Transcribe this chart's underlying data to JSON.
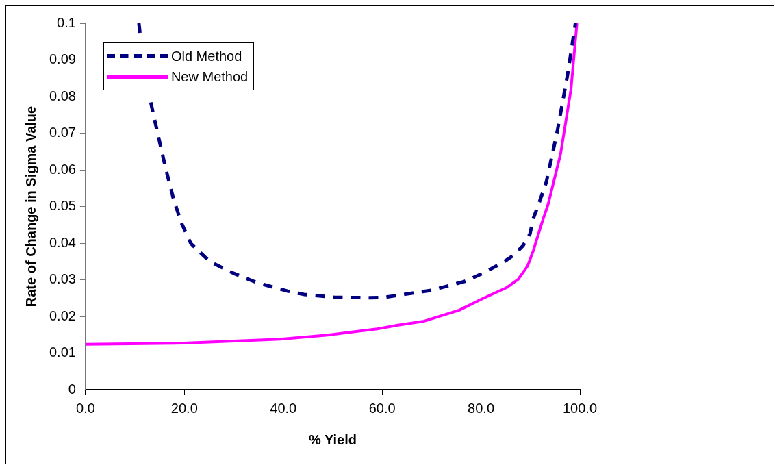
{
  "chart_data": {
    "type": "line",
    "xlabel": "% Yield",
    "ylabel": "Rate of Change in Sigma Value",
    "xlim": [
      0,
      100
    ],
    "xticks": [
      {
        "value": 0,
        "label": "0.0"
      },
      {
        "value": 20,
        "label": "20.0"
      },
      {
        "value": 40,
        "label": "40.0"
      },
      {
        "value": 60,
        "label": "60.0"
      },
      {
        "value": 80,
        "label": "80.0"
      },
      {
        "value": 100,
        "label": "100.0"
      }
    ],
    "ylim": [
      0,
      0.1
    ],
    "yticks": [
      0,
      0.01,
      0.02,
      0.03,
      0.04,
      0.05,
      0.06,
      0.07,
      0.08,
      0.09,
      0.1
    ],
    "grid": false,
    "legend": "top left",
    "marker": "none",
    "series": [
      {
        "name": "Old Method",
        "color": "#000080",
        "line_style": "dashed",
        "x": [
          10.8,
          11.1,
          12.2,
          13.2,
          14.6,
          16.2,
          17.8,
          19.4,
          21.3,
          25.1,
          29.9,
          34.7,
          40.9,
          44.2,
          50.4,
          57.5,
          60.4,
          69.9,
          76.6,
          80.4,
          84.4,
          86.6,
          88.5,
          89.9,
          90.6,
          91.6,
          93.2,
          95.4,
          97.5,
          99.1
        ],
        "values": [
          0.1,
          0.0963,
          null,
          0.0784,
          0.0699,
          0.0605,
          0.052,
          0.0455,
          0.0399,
          0.035,
          0.0318,
          0.0292,
          0.0269,
          0.026,
          0.0252,
          0.0251,
          0.0252,
          0.0271,
          0.0295,
          0.0318,
          0.0347,
          0.0367,
          0.0393,
          0.0425,
          0.0468,
          0.0504,
          0.0566,
          0.0703,
          0.0859,
          0.1
        ]
      },
      {
        "name": "New Method",
        "color": "#ff00ff",
        "line_style": "solid",
        "x": [
          0,
          19.9,
          39.4,
          49,
          59,
          63.2,
          68.5,
          75.6,
          80.4,
          85.1,
          87.5,
          89.4,
          90.6,
          92.3,
          93.6,
          96.1,
          98.2,
          99.4
        ],
        "values": [
          0.0124,
          0.0127,
          0.0138,
          0.0149,
          0.0166,
          0.0176,
          0.0187,
          0.0217,
          0.0249,
          0.0278,
          0.0301,
          0.0337,
          0.038,
          0.0455,
          0.0507,
          0.0644,
          0.082,
          0.1
        ]
      }
    ]
  }
}
